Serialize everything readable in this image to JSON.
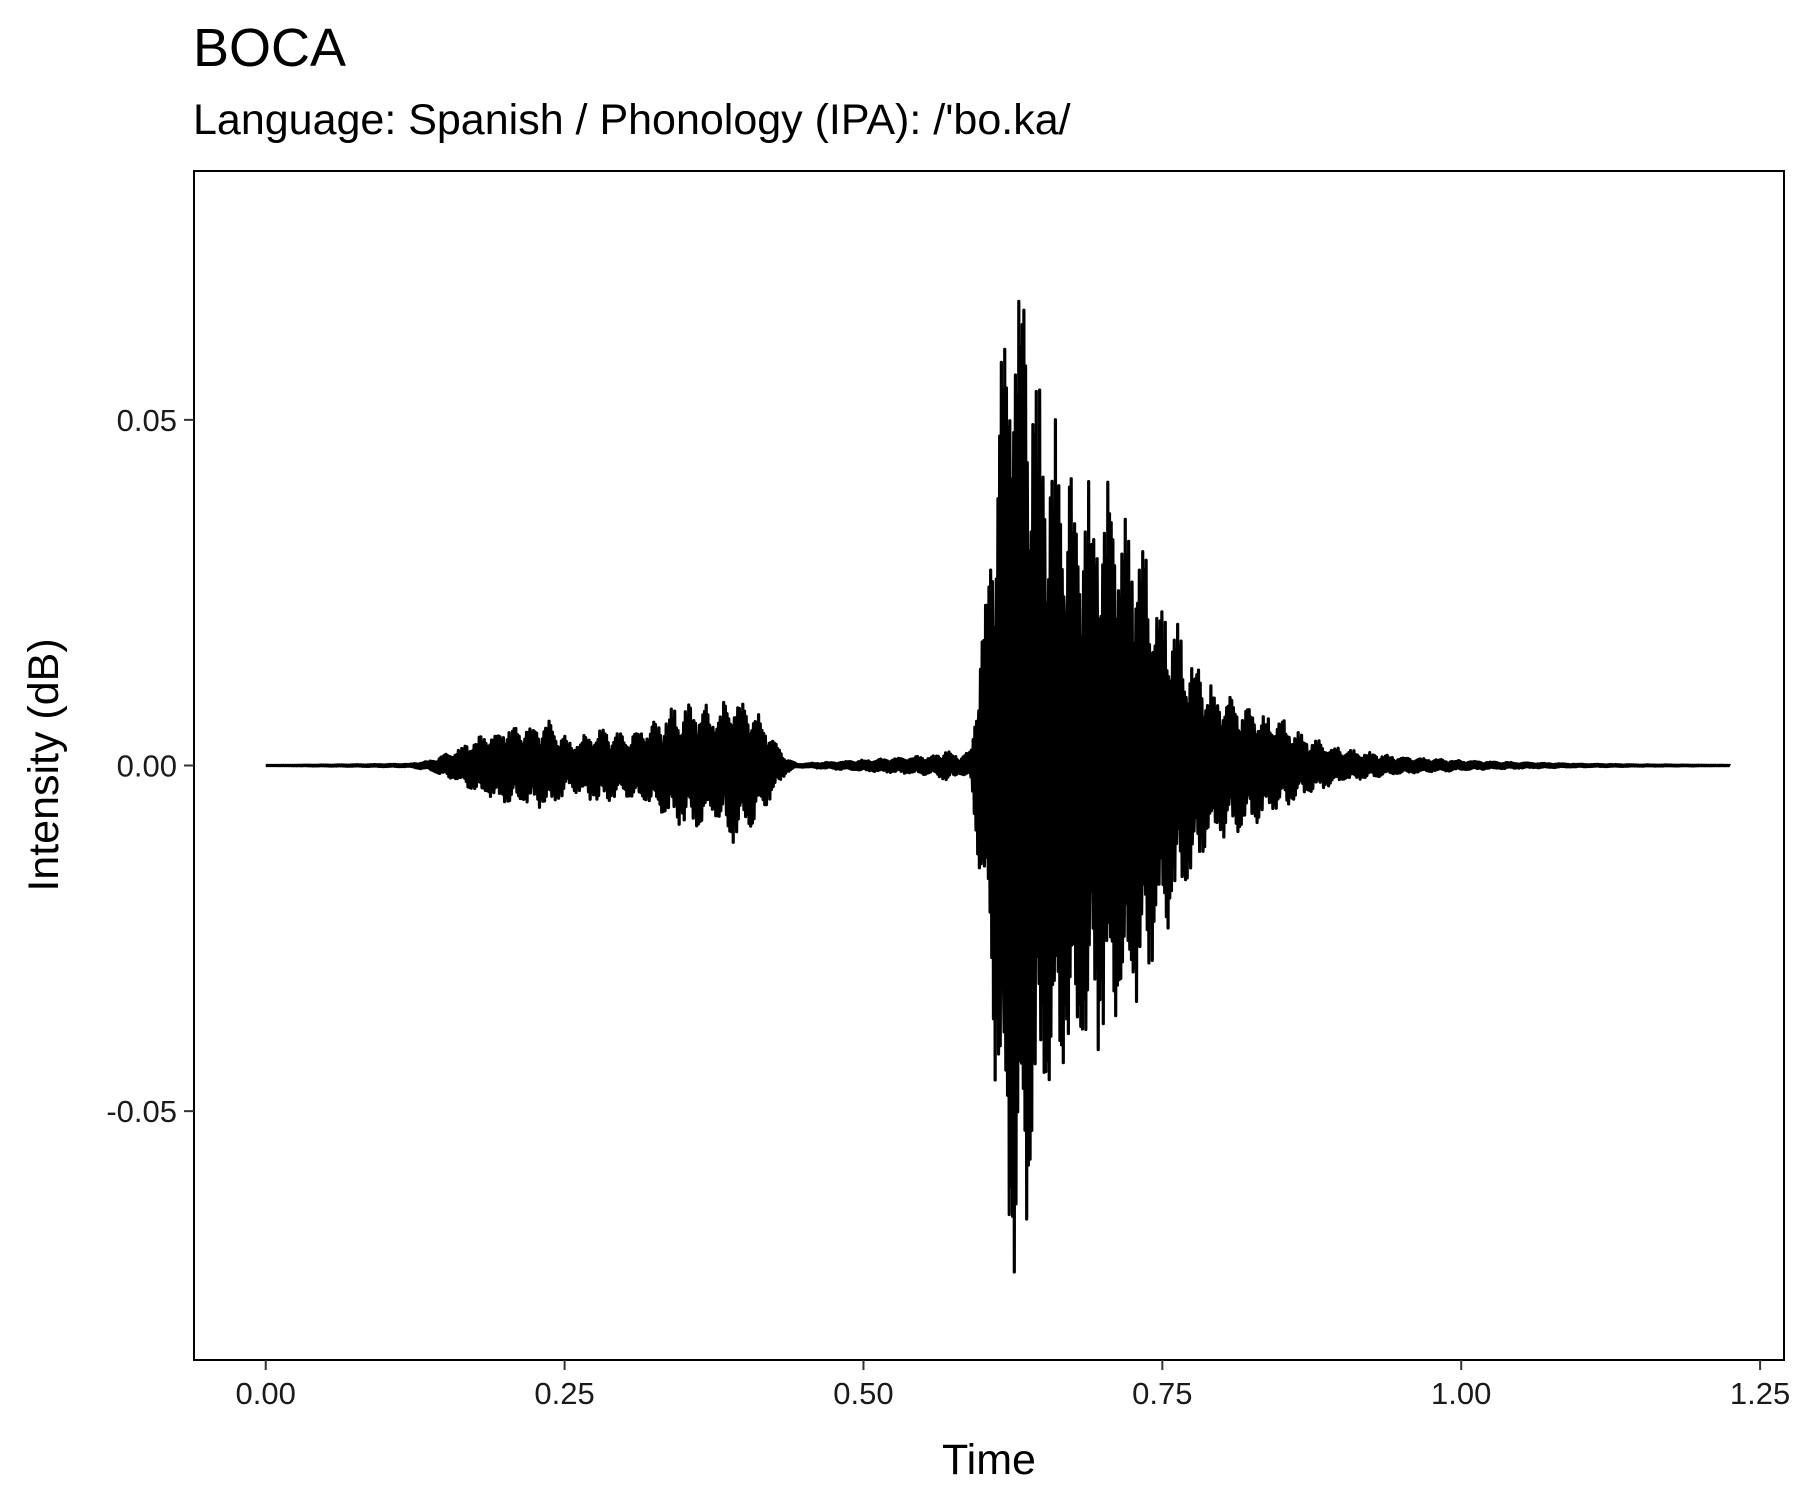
{
  "chart_data": {
    "type": "line",
    "title": "BOCA",
    "subtitle": "Language: Spanish / Phonology (IPA): /'bo.ka/",
    "xlabel": "Time",
    "ylabel": "Intensity (dB)",
    "xlim": [
      -0.06,
      1.27
    ],
    "ylim": [
      -0.086,
      0.086
    ],
    "x_ticks": [
      {
        "value": 0.0,
        "label": "0.00"
      },
      {
        "value": 0.25,
        "label": "0.25"
      },
      {
        "value": 0.5,
        "label": "0.50"
      },
      {
        "value": 0.75,
        "label": "0.75"
      },
      {
        "value": 1.0,
        "label": "1.00"
      },
      {
        "value": 1.25,
        "label": "1.25"
      }
    ],
    "y_ticks": [
      {
        "value": 0.05,
        "label": "0.05"
      },
      {
        "value": 0.0,
        "label": "0.00"
      },
      {
        "value": -0.05,
        "label": "-0.05"
      }
    ],
    "grid": false,
    "line_color": "#000000",
    "duration": 1.225,
    "series": [
      {
        "envelope": {
          "x": [
            0.0,
            0.12,
            0.14,
            0.16,
            0.18,
            0.2,
            0.22,
            0.24,
            0.255,
            0.27,
            0.28,
            0.3,
            0.32,
            0.34,
            0.36,
            0.38,
            0.39,
            0.41,
            0.42,
            0.435,
            0.445,
            0.56,
            0.57,
            0.58,
            0.59,
            0.6,
            0.605,
            0.615,
            0.625,
            0.635,
            0.645,
            0.655,
            0.67,
            0.69,
            0.71,
            0.73,
            0.75,
            0.77,
            0.79,
            0.82,
            0.85,
            0.87,
            0.9,
            0.95,
            1.0,
            1.05,
            1.1,
            1.15,
            1.225
          ],
          "y": [
            0.0,
            0.0002,
            0.0008,
            0.0025,
            0.0045,
            0.006,
            0.0062,
            0.0065,
            0.0035,
            0.0052,
            0.0057,
            0.0045,
            0.006,
            0.0085,
            0.0092,
            0.0082,
            0.0115,
            0.0085,
            0.0055,
            0.0012,
            0.0002,
            0.0015,
            0.0025,
            0.0012,
            0.0025,
            0.022,
            0.029,
            0.064,
            0.078,
            0.076,
            0.058,
            0.054,
            0.046,
            0.043,
            0.041,
            0.035,
            0.026,
            0.018,
            0.012,
            0.009,
            0.007,
            0.0045,
            0.0025,
            0.0012,
            0.0007,
            0.0004,
            0.0002,
            0.0001,
            3e-05
          ]
        }
      }
    ]
  }
}
